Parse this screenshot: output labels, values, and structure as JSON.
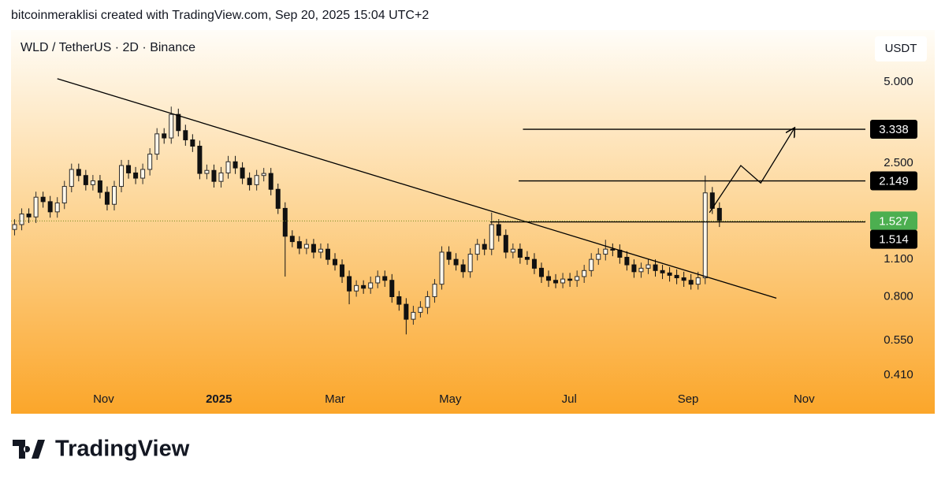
{
  "header": "bitcoinmeraklisi created with TradingView.com, Sep 20, 2025 15:04 UTC+2",
  "footer": {
    "brand": "TradingView"
  },
  "chart_data": {
    "type": "candlestick",
    "title": "WLD / TetherUS · 2D · Binance",
    "currency": "USDT",
    "log_scale": true,
    "up_color": "#2b2b2b",
    "down_color": "#111111",
    "xlim": [
      0,
      120
    ],
    "xticks": [
      {
        "value": 13.0,
        "label": "Nov"
      },
      {
        "value": 29.2,
        "label": "2025"
      },
      {
        "value": 45.5,
        "label": "Mar"
      },
      {
        "value": 61.7,
        "label": "May"
      },
      {
        "value": 78.4,
        "label": "Jul"
      },
      {
        "value": 95.1,
        "label": "Sep"
      },
      {
        "value": 111.4,
        "label": "Nov"
      }
    ],
    "ylim": [
      0.368,
      7.79
    ],
    "yticks": [
      {
        "value": 5,
        "label": "5.000"
      },
      {
        "value": 2.5,
        "label": "2.500"
      },
      {
        "value": 1.1,
        "label": "1.100"
      },
      {
        "value": 0.8,
        "label": "0.800"
      },
      {
        "value": 0.55,
        "label": "0.550"
      },
      {
        "value": 0.41,
        "label": "0.410"
      }
    ],
    "series": [
      {
        "name": "WLD",
        "open": [
          1.42,
          1.48,
          1.62,
          1.58,
          1.87,
          1.8,
          1.65,
          1.78,
          2.05,
          2.37,
          2.25,
          2.08,
          2.15,
          1.95,
          1.76,
          2.05,
          2.45,
          2.3,
          2.2,
          2.37,
          2.7,
          3.21,
          3.1,
          3.79,
          3.3,
          3.05,
          2.89,
          2.29,
          2.35,
          2.14,
          2.3,
          2.53,
          2.4,
          2.2,
          2.08,
          2.25,
          2.29,
          2.0,
          1.7,
          1.34,
          1.28,
          1.21,
          1.25,
          1.17,
          1.2,
          1.1,
          1.05,
          0.95,
          0.84,
          0.88,
          0.86,
          0.9,
          0.95,
          0.92,
          0.8,
          0.75,
          0.66,
          0.7,
          0.73,
          0.8,
          0.89,
          1.17,
          1.1,
          1.05,
          0.99,
          1.15,
          1.25,
          1.2,
          1.48,
          1.35,
          1.17,
          1.2,
          1.12,
          1.1,
          1.02,
          0.95,
          0.92,
          0.9,
          0.93,
          0.92,
          0.95,
          1.0,
          1.1,
          1.15,
          1.2,
          1.19,
          1.12,
          1.05,
          0.99,
          1.02,
          1.05,
          1.0,
          0.98,
          0.96,
          0.94,
          0.92,
          0.89,
          0.94,
          1.94,
          1.7
        ],
        "high": [
          1.55,
          1.7,
          1.7,
          1.96,
          1.96,
          1.89,
          1.87,
          2.15,
          2.49,
          2.49,
          2.36,
          2.26,
          2.26,
          2.05,
          2.15,
          2.57,
          2.57,
          2.42,
          2.49,
          2.84,
          3.37,
          3.37,
          4.05,
          3.98,
          3.47,
          3.2,
          3.03,
          2.47,
          2.47,
          2.42,
          2.66,
          2.66,
          2.52,
          2.31,
          2.36,
          2.4,
          2.4,
          2.1,
          1.79,
          1.41,
          1.34,
          1.31,
          1.31,
          1.26,
          1.26,
          1.16,
          1.1,
          1.0,
          0.92,
          0.92,
          0.95,
          1.0,
          1.0,
          0.97,
          0.84,
          0.79,
          0.74,
          0.77,
          0.84,
          0.93,
          1.23,
          1.23,
          1.16,
          1.1,
          1.21,
          1.31,
          1.31,
          1.64,
          1.55,
          1.42,
          1.26,
          1.26,
          1.18,
          1.16,
          1.07,
          1.0,
          0.97,
          0.98,
          0.98,
          1.0,
          1.05,
          1.16,
          1.21,
          1.3,
          1.26,
          1.25,
          1.18,
          1.1,
          1.07,
          1.1,
          1.1,
          1.05,
          1.03,
          1.01,
          0.99,
          0.97,
          0.99,
          2.25,
          2.04,
          1.79
        ],
        "low": [
          1.35,
          1.41,
          1.5,
          1.5,
          1.71,
          1.57,
          1.57,
          1.69,
          1.95,
          2.14,
          1.98,
          1.98,
          1.85,
          1.67,
          1.67,
          1.95,
          2.19,
          2.09,
          2.09,
          2.25,
          2.57,
          2.95,
          2.95,
          3.14,
          2.9,
          2.75,
          2.18,
          2.18,
          2.03,
          2.03,
          2.19,
          2.28,
          2.09,
          1.98,
          1.98,
          2.14,
          1.9,
          1.62,
          0.95,
          1.22,
          1.15,
          1.15,
          1.11,
          1.11,
          1.05,
          1.0,
          0.9,
          0.75,
          0.8,
          0.82,
          0.82,
          0.86,
          0.87,
          0.76,
          0.71,
          0.58,
          0.63,
          0.67,
          0.69,
          0.76,
          0.85,
          1.05,
          1.0,
          0.94,
          0.94,
          1.09,
          1.14,
          1.14,
          1.28,
          1.11,
          1.11,
          1.06,
          1.05,
          0.97,
          0.9,
          0.87,
          0.86,
          0.86,
          0.87,
          0.87,
          0.9,
          0.95,
          1.05,
          1.09,
          1.13,
          1.06,
          1.0,
          0.94,
          0.94,
          0.97,
          0.95,
          0.93,
          0.91,
          0.89,
          0.87,
          0.85,
          0.85,
          0.89,
          1.62,
          1.45
        ],
        "close": [
          1.48,
          1.62,
          1.58,
          1.87,
          1.8,
          1.65,
          1.78,
          2.05,
          2.37,
          2.25,
          2.08,
          2.15,
          1.95,
          1.76,
          2.05,
          2.45,
          2.3,
          2.2,
          2.37,
          2.7,
          3.21,
          3.1,
          3.79,
          3.3,
          3.05,
          2.89,
          2.29,
          2.35,
          2.14,
          2.3,
          2.53,
          2.4,
          2.2,
          2.08,
          2.25,
          2.29,
          2.0,
          1.7,
          1.34,
          1.28,
          1.21,
          1.25,
          1.17,
          1.2,
          1.1,
          1.05,
          0.95,
          0.84,
          0.88,
          0.86,
          0.9,
          0.95,
          0.92,
          0.8,
          0.75,
          0.66,
          0.7,
          0.73,
          0.8,
          0.89,
          1.17,
          1.1,
          1.05,
          0.99,
          1.15,
          1.25,
          1.2,
          1.48,
          1.35,
          1.17,
          1.2,
          1.12,
          1.1,
          1.02,
          0.95,
          0.92,
          0.9,
          0.93,
          0.92,
          0.95,
          1.0,
          1.1,
          1.15,
          1.2,
          1.19,
          1.12,
          1.05,
          0.99,
          1.02,
          1.05,
          1.0,
          0.98,
          0.96,
          0.94,
          0.92,
          0.89,
          0.94,
          1.94,
          1.7,
          1.53
        ]
      }
    ],
    "trendline": {
      "x": [
        6.5,
        107.5
      ],
      "y": [
        5.14,
        0.79
      ]
    },
    "projection": {
      "x": [
        98.1,
        102.5,
        105.3,
        110.0
      ],
      "y": [
        1.64,
        2.45,
        2.11,
        3.36
      ]
    },
    "price_levels": [
      {
        "value": 3.338,
        "x_start": 71.9,
        "color": "#000000",
        "style": "solid"
      },
      {
        "value": 2.149,
        "x_start": 71.3,
        "color": "#000000",
        "style": "solid"
      },
      {
        "value": 1.527,
        "x_start": 0,
        "color": "#4caf50",
        "style": "dotted"
      },
      {
        "value": 1.514,
        "x_start": 67.3,
        "color": "#000000",
        "style": "solid"
      }
    ]
  }
}
